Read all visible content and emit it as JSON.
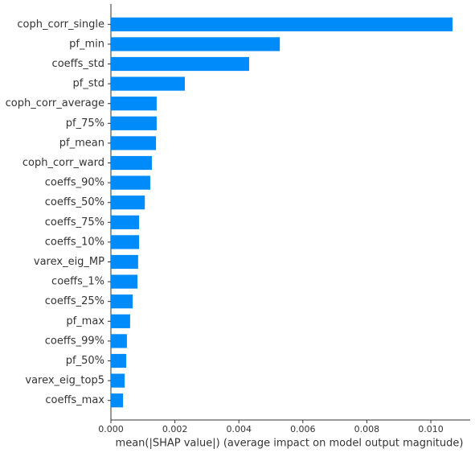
{
  "chart_data": {
    "type": "barh",
    "xlabel": "mean(|SHAP value|) (average impact on model output magnitude)",
    "categories": [
      "coph_corr_single",
      "pf_min",
      "coeffs_std",
      "pf_std",
      "coph_corr_average",
      "pf_75%",
      "pf_mean",
      "coph_corr_ward",
      "coeffs_90%",
      "coeffs_50%",
      "coeffs_75%",
      "coeffs_10%",
      "varex_eig_MP",
      "coeffs_1%",
      "coeffs_25%",
      "pf_max",
      "coeffs_99%",
      "pf_50%",
      "varex_eig_top5",
      "coeffs_max"
    ],
    "values": [
      0.01068,
      0.00528,
      0.00432,
      0.00231,
      0.00143,
      0.00143,
      0.00141,
      0.00128,
      0.00123,
      0.00106,
      0.00088,
      0.00088,
      0.00085,
      0.00083,
      0.00068,
      0.0006,
      0.0005,
      0.00048,
      0.00043,
      0.00038
    ],
    "color": "#008bfb",
    "xlim": [
      0,
      0.01123
    ],
    "xticks": [
      {
        "value": 0,
        "label": "0.000"
      },
      {
        "value": 0.002,
        "label": "0.002"
      },
      {
        "value": 0.004,
        "label": "0.004"
      },
      {
        "value": 0.006,
        "label": "0.006"
      },
      {
        "value": 0.008,
        "label": "0.008"
      },
      {
        "value": 0.01,
        "label": "0.010"
      }
    ],
    "grid": false
  }
}
